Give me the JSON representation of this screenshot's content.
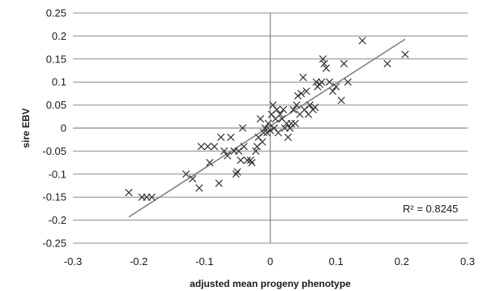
{
  "chart_data": {
    "type": "scatter",
    "title": "",
    "xlabel": "adjusted mean progeny phenotype",
    "ylabel": "sire EBV",
    "xlim": [
      -0.3,
      0.3
    ],
    "ylim": [
      -0.25,
      0.25
    ],
    "x_ticks": [
      -0.3,
      -0.2,
      -0.1,
      0,
      0.1,
      0.2,
      0.3
    ],
    "y_ticks": [
      -0.25,
      -0.2,
      -0.15,
      -0.1,
      -0.05,
      0,
      0.05,
      0.1,
      0.15,
      0.2,
      0.25
    ],
    "x_tick_labels": [
      "-0.3",
      "-0.2",
      "-0.1",
      "0",
      "0.1",
      "0.2",
      "0.3"
    ],
    "y_tick_labels": [
      "-0.25",
      "-0.2",
      "-0.15",
      "-0.1",
      "-0.05",
      "0",
      "0.05",
      "0.1",
      "0.15",
      "0.2",
      "0.25"
    ],
    "grid": "horizontal",
    "marker": "x",
    "trendline": {
      "x": [
        -0.215,
        0.205
      ],
      "y": [
        -0.193,
        0.193
      ]
    },
    "annotation": "R² = 0.8245",
    "points": [
      [
        -0.215,
        -0.14
      ],
      [
        -0.195,
        -0.15
      ],
      [
        -0.188,
        -0.15
      ],
      [
        -0.18,
        -0.15
      ],
      [
        -0.128,
        -0.1
      ],
      [
        -0.118,
        -0.11
      ],
      [
        -0.108,
        -0.13
      ],
      [
        -0.105,
        -0.04
      ],
      [
        -0.095,
        -0.04
      ],
      [
        -0.092,
        -0.075
      ],
      [
        -0.085,
        -0.04
      ],
      [
        -0.078,
        -0.12
      ],
      [
        -0.075,
        -0.02
      ],
      [
        -0.07,
        -0.05
      ],
      [
        -0.065,
        -0.06
      ],
      [
        -0.06,
        -0.02
      ],
      [
        -0.055,
        -0.05
      ],
      [
        -0.052,
        -0.1
      ],
      [
        -0.05,
        -0.095
      ],
      [
        -0.048,
        -0.05
      ],
      [
        -0.045,
        -0.07
      ],
      [
        -0.042,
        0.0
      ],
      [
        -0.04,
        -0.04
      ],
      [
        -0.035,
        -0.07
      ],
      [
        -0.03,
        -0.07
      ],
      [
        -0.028,
        -0.075
      ],
      [
        -0.022,
        -0.05
      ],
      [
        -0.02,
        -0.04
      ],
      [
        -0.018,
        -0.02
      ],
      [
        -0.015,
        0.02
      ],
      [
        -0.012,
        -0.03
      ],
      [
        -0.01,
        -0.01
      ],
      [
        -0.008,
        0.0
      ],
      [
        -0.005,
        -0.01
      ],
      [
        -0.003,
        0.01
      ],
      [
        0.0,
        -0.005
      ],
      [
        0.002,
        0.03
      ],
      [
        0.004,
        0.05
      ],
      [
        0.006,
        0.0
      ],
      [
        0.008,
        0.02
      ],
      [
        0.01,
        0.04
      ],
      [
        0.012,
        -0.01
      ],
      [
        0.015,
        0.03
      ],
      [
        0.018,
        0.02
      ],
      [
        0.02,
        0.04
      ],
      [
        0.022,
        0.0
      ],
      [
        0.025,
        0.01
      ],
      [
        0.027,
        -0.02
      ],
      [
        0.03,
        0.0
      ],
      [
        0.032,
        0.01
      ],
      [
        0.035,
        0.04
      ],
      [
        0.038,
        0.01
      ],
      [
        0.04,
        0.05
      ],
      [
        0.042,
        0.07
      ],
      [
        0.045,
        0.03
      ],
      [
        0.047,
        0.075
      ],
      [
        0.05,
        0.11
      ],
      [
        0.052,
        0.04
      ],
      [
        0.055,
        0.08
      ],
      [
        0.058,
        0.03
      ],
      [
        0.06,
        0.05
      ],
      [
        0.065,
        0.04
      ],
      [
        0.068,
        0.045
      ],
      [
        0.07,
        0.1
      ],
      [
        0.072,
        0.09
      ],
      [
        0.075,
        0.095
      ],
      [
        0.078,
        0.1
      ],
      [
        0.08,
        0.15
      ],
      [
        0.082,
        0.14
      ],
      [
        0.085,
        0.13
      ],
      [
        0.09,
        0.1
      ],
      [
        0.095,
        0.08
      ],
      [
        0.1,
        0.09
      ],
      [
        0.108,
        0.06
      ],
      [
        0.112,
        0.14
      ],
      [
        0.118,
        0.1
      ],
      [
        0.14,
        0.19
      ],
      [
        0.178,
        0.14
      ],
      [
        0.205,
        0.16
      ]
    ]
  }
}
